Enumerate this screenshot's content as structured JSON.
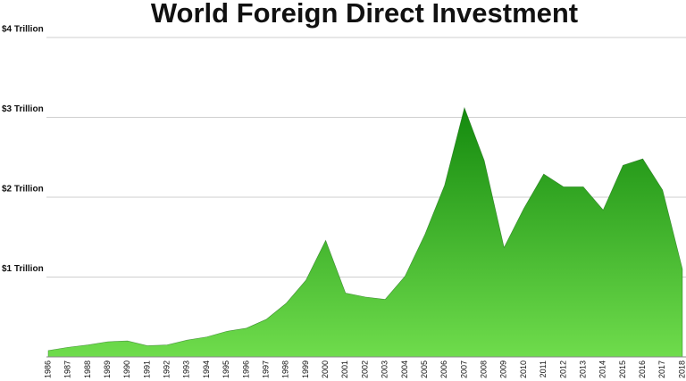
{
  "chart_data": {
    "type": "area",
    "title": "World Foreign Direct Investment",
    "categories": [
      "1986",
      "1987",
      "1988",
      "1989",
      "1990",
      "1991",
      "1992",
      "1993",
      "1994",
      "1995",
      "1996",
      "1997",
      "1998",
      "1999",
      "2000",
      "2001",
      "2002",
      "2003",
      "2004",
      "2005",
      "2006",
      "2007",
      "2008",
      "2009",
      "2010",
      "2011",
      "2012",
      "2013",
      "2014",
      "2015",
      "2016",
      "2017",
      "2018"
    ],
    "values": [
      0.08,
      0.12,
      0.15,
      0.19,
      0.2,
      0.14,
      0.15,
      0.21,
      0.25,
      0.32,
      0.36,
      0.47,
      0.67,
      0.96,
      1.46,
      0.8,
      0.75,
      0.72,
      1.01,
      1.53,
      2.15,
      3.12,
      2.46,
      1.37,
      1.86,
      2.29,
      2.13,
      2.13,
      1.84,
      2.4,
      2.48,
      2.09,
      1.1
    ],
    "gradient_colors": [
      "#148a0e",
      "#6fdc4c"
    ],
    "ylim": [
      0,
      4
    ],
    "yticks": [
      {
        "value": 1,
        "label": "$1 Trillion"
      },
      {
        "value": 2,
        "label": "$2 Trillion"
      },
      {
        "value": 3,
        "label": "$3 Trillion"
      },
      {
        "value": 4,
        "label": "$4 Trillion"
      }
    ],
    "grid": true
  }
}
